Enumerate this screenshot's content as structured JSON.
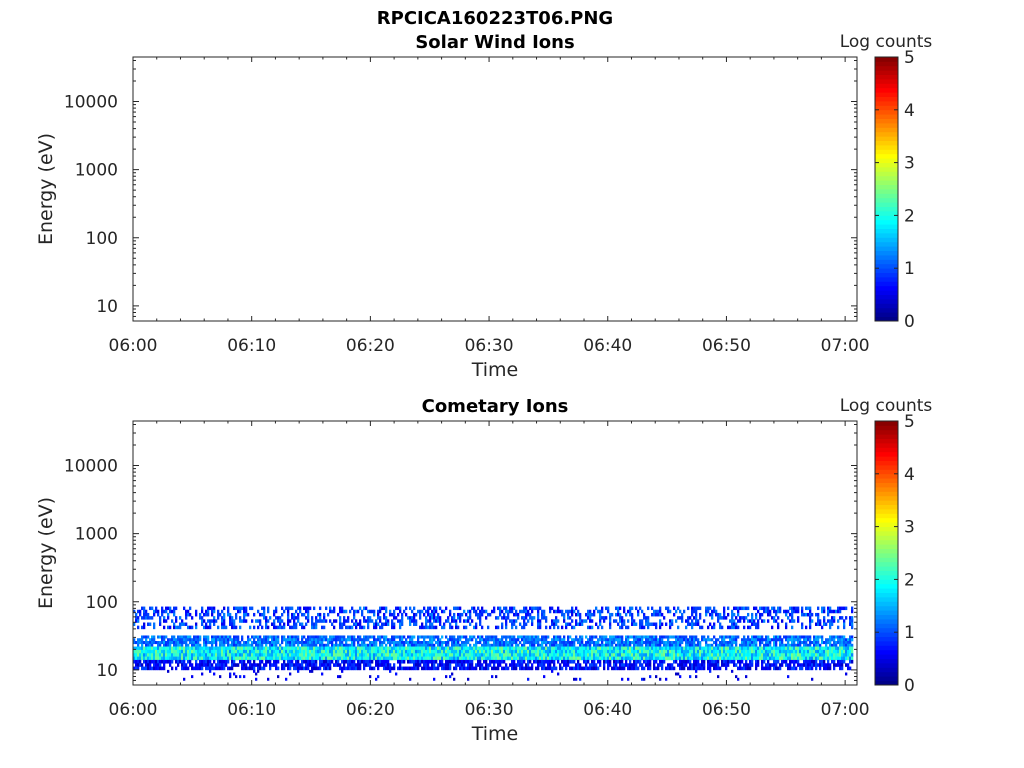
{
  "page_title": "RPCICA160223T06.PNG",
  "chart_data": [
    {
      "type": "heatmap",
      "title": "Solar Wind Ions",
      "xlabel": "Time",
      "ylabel": "Energy (eV)",
      "x_ticks": [
        "06:00",
        "06:10",
        "06:20",
        "06:30",
        "06:40",
        "06:50",
        "07:00"
      ],
      "x_range": [
        "06:00",
        "07:01"
      ],
      "y_scale": "log",
      "y_ticks": [
        10,
        100,
        1000,
        10000
      ],
      "y_tick_labels": [
        "10",
        "100",
        "1000",
        "10000"
      ],
      "y_range": [
        6,
        45000
      ],
      "colorbar": {
        "label": "Log counts",
        "range": [
          0,
          5
        ],
        "ticks": [
          "0",
          "1",
          "2",
          "3",
          "4",
          "5"
        ],
        "colormap": "jet"
      },
      "bands": []
    },
    {
      "type": "heatmap",
      "title": "Cometary Ions",
      "xlabel": "Time",
      "ylabel": "Energy (eV)",
      "x_ticks": [
        "06:00",
        "06:10",
        "06:20",
        "06:30",
        "06:40",
        "06:50",
        "07:00"
      ],
      "x_range": [
        "06:00",
        "07:01"
      ],
      "y_scale": "log",
      "y_ticks": [
        10,
        100,
        1000,
        10000
      ],
      "y_tick_labels": [
        "10",
        "100",
        "1000",
        "10000"
      ],
      "y_range": [
        6,
        45000
      ],
      "colorbar": {
        "label": "Log counts",
        "range": [
          0,
          5
        ],
        "ticks": [
          "0",
          "1",
          "2",
          "3",
          "4",
          "5"
        ],
        "colormap": "jet"
      },
      "bands": [
        {
          "e_low": 40,
          "e_high": 85,
          "log_counts_min": 0.5,
          "log_counts_max": 1.3,
          "coverage": 0.45
        },
        {
          "e_low": 22,
          "e_high": 32,
          "log_counts_min": 0.8,
          "log_counts_max": 1.5,
          "coverage": 0.8
        },
        {
          "e_low": 14,
          "e_high": 22,
          "log_counts_min": 1.3,
          "log_counts_max": 2.5,
          "coverage": 1.0
        },
        {
          "e_low": 10,
          "e_high": 14,
          "log_counts_min": 0.3,
          "log_counts_max": 1.0,
          "coverage": 0.75
        },
        {
          "e_low": 7,
          "e_high": 10,
          "log_counts_min": 0.3,
          "log_counts_max": 0.8,
          "coverage": 0.05
        }
      ]
    }
  ]
}
